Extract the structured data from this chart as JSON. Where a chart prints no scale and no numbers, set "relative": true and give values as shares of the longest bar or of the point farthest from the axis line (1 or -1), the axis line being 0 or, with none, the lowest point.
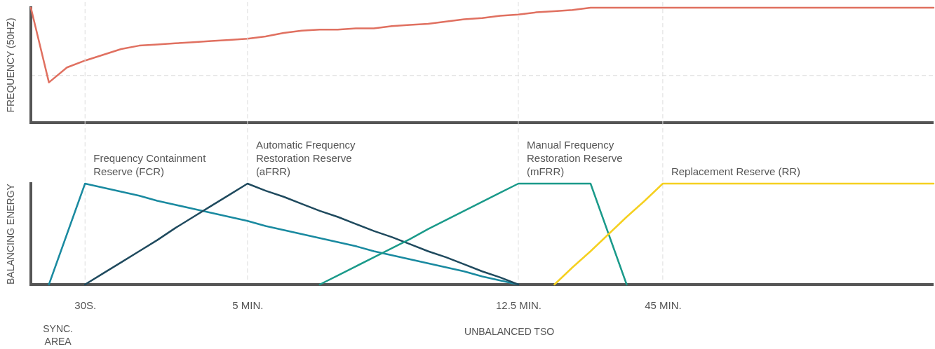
{
  "chart_data": [
    {
      "type": "line",
      "ylabel": "FREQUENCY (50HZ)",
      "relative": true,
      "categories": [
        null,
        null,
        null,
        null,
        null,
        null,
        null,
        null,
        null,
        null,
        null,
        null,
        null,
        null,
        null,
        null,
        null,
        null,
        null,
        null,
        null,
        null,
        null,
        null,
        null,
        null,
        null,
        null,
        null,
        null,
        null,
        null,
        null,
        null,
        null,
        null,
        null,
        null,
        null,
        null,
        null,
        null,
        null,
        null,
        null,
        null,
        null,
        null,
        null,
        null,
        null
      ],
      "tick_labels": false,
      "legend": false,
      "ref_lines": [
        {
          "axis": "y",
          "value": 0.41,
          "color": "#dddddd",
          "line_style": "dashed"
        }
      ],
      "series": [
        {
          "color": "#e07060",
          "values": [
            1.0,
            0.35,
            0.48,
            0.54,
            0.59,
            0.64,
            0.67,
            0.68,
            0.69,
            0.7,
            0.71,
            0.72,
            0.73,
            0.75,
            0.78,
            0.8,
            0.81,
            0.81,
            0.82,
            0.82,
            0.84,
            0.85,
            0.86,
            0.88,
            0.9,
            0.91,
            0.93,
            0.94,
            0.96,
            0.97,
            0.98,
            1.0,
            1,
            1,
            1,
            1,
            1,
            1,
            1,
            1,
            1,
            1,
            1,
            1,
            1,
            1,
            1,
            1,
            1,
            1,
            1
          ]
        }
      ]
    },
    {
      "type": "line",
      "ylabel": "BALANCING ENERGY",
      "relative": true,
      "categories": [
        null,
        null,
        null,
        "30S.",
        null,
        null,
        null,
        null,
        null,
        null,
        null,
        null,
        "5 MIN.",
        null,
        null,
        null,
        null,
        null,
        null,
        null,
        null,
        null,
        null,
        null,
        null,
        null,
        null,
        "12.5 MIN.",
        null,
        null,
        null,
        null,
        null,
        null,
        null,
        "45 MIN.",
        null,
        null,
        null,
        null,
        null,
        null,
        null,
        null,
        null,
        null,
        null,
        null,
        null,
        null,
        null
      ],
      "tick_labels": "x",
      "grid": "x",
      "legend": false,
      "annotations": [
        "SYNC. AREA",
        "UNBALANCED TSO"
      ],
      "series": [
        {
          "name": "Frequency Containment Reserve (FCR)",
          "color": "#1a8aa0",
          "values": [
            null,
            0,
            0.5,
            1,
            0.96,
            0.92,
            0.88,
            0.83,
            0.79,
            0.75,
            0.71,
            0.67,
            0.63,
            0.58,
            0.54,
            0.5,
            0.46,
            0.42,
            0.38,
            0.33,
            0.29,
            0.25,
            0.21,
            0.17,
            0.13,
            0.08,
            0.04,
            0,
            null,
            null,
            null,
            null,
            null,
            null,
            null,
            null,
            null,
            null,
            null,
            null,
            null,
            null,
            null,
            null,
            null,
            null,
            null,
            null,
            null,
            null,
            null
          ]
        },
        {
          "name": "Automatic Frequency Restoration Reserve (aFRR)",
          "color": "#1f4a5e",
          "values": [
            null,
            null,
            null,
            0,
            0.11,
            0.22,
            0.33,
            0.44,
            0.56,
            0.67,
            0.78,
            0.89,
            1,
            0.93,
            0.87,
            0.8,
            0.73,
            0.67,
            0.6,
            0.53,
            0.47,
            0.4,
            0.33,
            0.27,
            0.2,
            0.13,
            0.07,
            0,
            null,
            null,
            null,
            null,
            null,
            null,
            null,
            null,
            null,
            null,
            null,
            null,
            null,
            null,
            null,
            null,
            null,
            null,
            null,
            null,
            null,
            null,
            null
          ]
        },
        {
          "name": "Manual Frequency Restoration Reserve (mFRR)",
          "color": "#1a9a8a",
          "values": [
            null,
            null,
            null,
            null,
            null,
            null,
            null,
            null,
            null,
            null,
            null,
            null,
            null,
            null,
            null,
            null,
            0,
            0.09,
            0.18,
            0.27,
            0.36,
            0.45,
            0.55,
            0.64,
            0.73,
            0.82,
            0.91,
            1,
            1,
            1,
            1,
            1,
            0.5,
            0,
            null,
            null,
            null,
            null,
            null,
            null,
            null,
            null,
            null,
            null,
            null,
            null,
            null,
            null,
            null,
            null,
            null
          ]
        },
        {
          "name": "Replacement Reserve (RR)",
          "color": "#f5d020",
          "values": [
            null,
            null,
            null,
            null,
            null,
            null,
            null,
            null,
            null,
            null,
            null,
            null,
            null,
            null,
            null,
            null,
            null,
            null,
            null,
            null,
            null,
            null,
            null,
            null,
            null,
            null,
            null,
            null,
            null,
            0,
            0.17,
            0.33,
            0.5,
            0.67,
            0.83,
            1,
            1,
            1,
            1,
            1,
            1,
            1,
            1,
            1,
            1,
            1,
            1,
            1,
            1,
            1,
            1
          ]
        }
      ]
    }
  ]
}
